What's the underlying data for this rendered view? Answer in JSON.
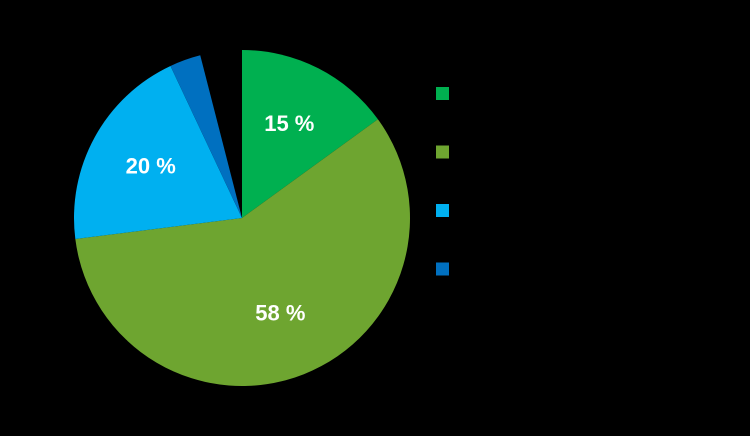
{
  "chart_data": {
    "type": "pie",
    "categories": [
      null,
      null,
      null,
      null
    ],
    "values": [
      15,
      58,
      20,
      3
    ],
    "value_labels": [
      "15 %",
      "58 %",
      "20 %",
      null
    ],
    "colors": [
      "#00b050",
      "#6ea530",
      "#00b0f0",
      "#0070c0"
    ],
    "legend": "right"
  }
}
